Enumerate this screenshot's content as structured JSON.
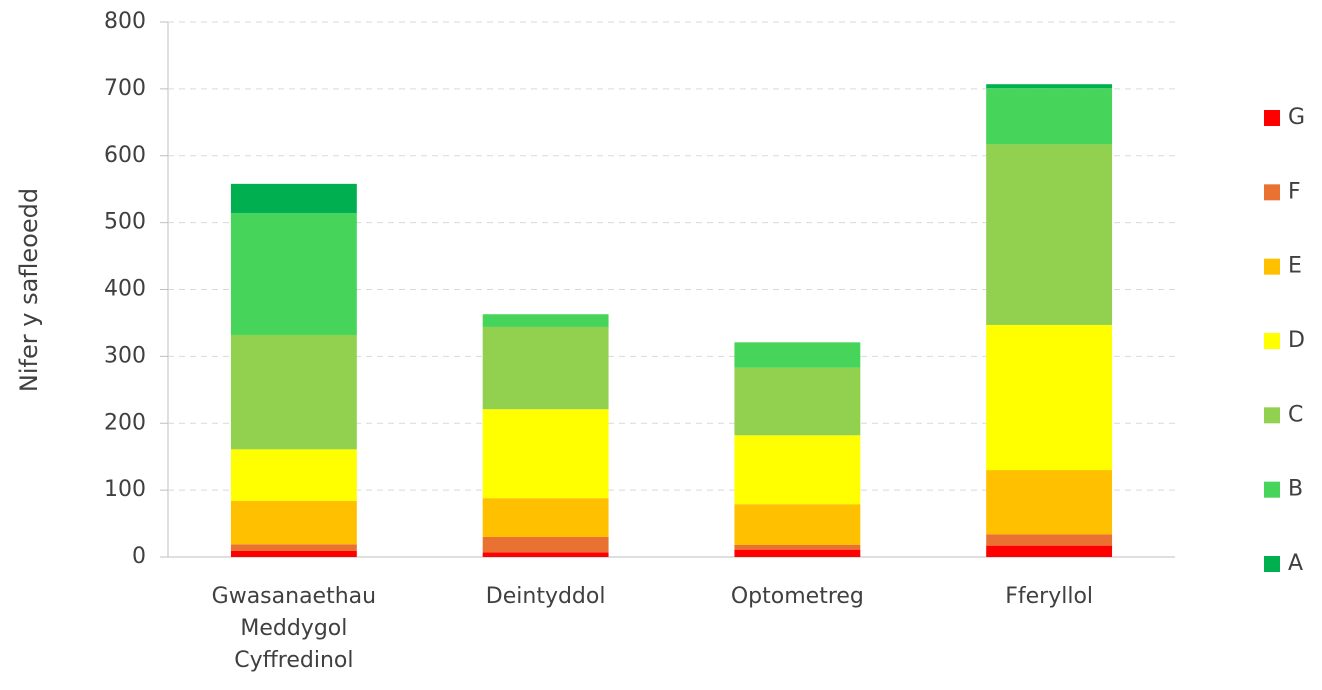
{
  "chart_data": {
    "type": "stacked_bar",
    "y_label": "Nifer y safleoedd",
    "categories": [
      "Gwasanaethau Meddygol Cyffredinol",
      "Deintyddol",
      "Optometreg",
      "Fferyllol"
    ],
    "series": [
      {
        "name": "G",
        "color": "#ff0000",
        "values": [
          9,
          7,
          11,
          17
        ]
      },
      {
        "name": "F",
        "color": "#e97132",
        "values": [
          10,
          23,
          7,
          17
        ]
      },
      {
        "name": "E",
        "color": "#ffc000",
        "values": [
          65,
          58,
          61,
          96
        ]
      },
      {
        "name": "D",
        "color": "#ffff00",
        "values": [
          77,
          133,
          103,
          217
        ]
      },
      {
        "name": "C",
        "color": "#92d050",
        "values": [
          171,
          123,
          101,
          270
        ]
      },
      {
        "name": "B",
        "color": "#47d45a",
        "values": [
          182,
          19,
          38,
          84
        ]
      },
      {
        "name": "A",
        "color": "#00b050",
        "values": [
          44,
          0,
          0,
          6
        ]
      }
    ],
    "ylim": [
      0,
      800
    ],
    "yticks": [
      0,
      100,
      200,
      300,
      400,
      500,
      600,
      700,
      800
    ],
    "grid": true,
    "legend": "right"
  }
}
